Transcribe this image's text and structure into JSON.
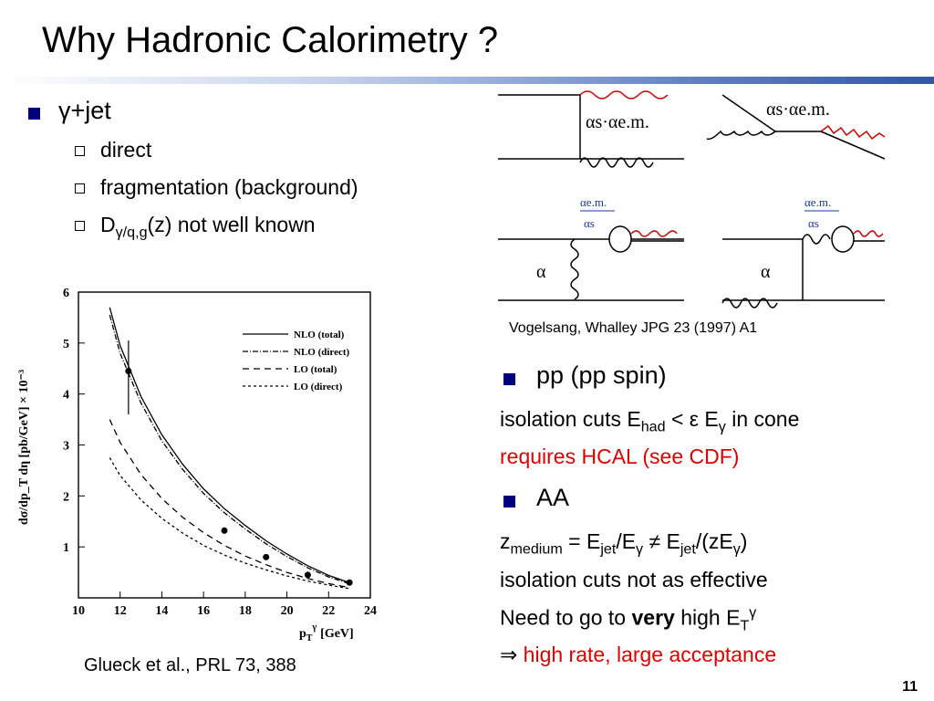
{
  "slide": {
    "title": "Why Hadronic Calorimetry ?",
    "page_number": "11"
  },
  "left": {
    "bullet_main": "γ+jet",
    "subitems": [
      "direct",
      "fragmentation (background)"
    ],
    "sub3_prefix": "D",
    "sub3_subscript": "γ/q,g",
    "sub3_suffix": "(z) not well known",
    "plot_caption": "Glueck et al., PRL 73, 388"
  },
  "right": {
    "diagram_caption": "Vogelsang, Whalley JPG 23 (1997) A1",
    "pp_heading": "pp (pp spin)",
    "iso1": {
      "pre": "isolation cuts  E",
      "sub_had": "had",
      "mid": " < ε E",
      "sub_g": "γ",
      "post": " in cone"
    },
    "hcal": "requires HCAL (see CDF)",
    "aa_heading": "AA",
    "z": {
      "z": "z",
      "sub_medium": "medium",
      "eq": " = E",
      "sub_jet1": "jet",
      "slash": "/E",
      "sub_g1": "γ",
      "ne": " ≠ E",
      "sub_jet2": "jet",
      "slash2": "/(zE",
      "sub_g2": "γ",
      "close": ")"
    },
    "iso2": "isolation cuts not as effective",
    "need": {
      "pre": "Need to go to ",
      "bold": "very",
      "post": " high E",
      "sub_t": "T",
      "sup_g": "γ"
    },
    "arrow": "⇒",
    "highrate": " high rate, large acceptance"
  },
  "diagrams": {
    "labels": {
      "as_aem": "αs·αe.m.",
      "aem": "αe.m.",
      "as": "αs",
      "as2": "α"
    }
  },
  "colors": {
    "bullet": "#000080",
    "red": "#e00000",
    "wavy": "#cc0000",
    "coupling_blue": "#1a3a9c"
  },
  "chart_data": {
    "type": "line",
    "xlabel": "p",
    "xlabel_sub": "T",
    "xlabel_sup": "γ",
    "xlabel_unit": "[GeV]",
    "ylabel": "dσ/dp_T dη  [pb/GeV] × 10⁻³",
    "xlim": [
      10,
      24
    ],
    "ylim": [
      0,
      6
    ],
    "x_ticks": [
      10,
      12,
      14,
      16,
      18,
      20,
      22,
      24
    ],
    "y_ticks": [
      1,
      2,
      3,
      4,
      5,
      6
    ],
    "legend": [
      "NLO (total)",
      "NLO (direct)",
      "LO (total)",
      "LO (direct)"
    ],
    "legend_position": "top-right",
    "series": [
      {
        "name": "NLO (total)",
        "x": [
          11.5,
          12,
          13,
          14,
          15,
          16,
          17,
          18,
          19,
          20,
          21,
          22,
          23
        ],
        "values": [
          5.7,
          4.95,
          3.95,
          3.2,
          2.62,
          2.14,
          1.75,
          1.42,
          1.12,
          0.86,
          0.63,
          0.44,
          0.3
        ]
      },
      {
        "name": "NLO (direct)",
        "x": [
          11.5,
          12,
          13,
          14,
          15,
          16,
          17,
          18,
          19,
          20,
          21,
          22,
          23
        ],
        "values": [
          5.55,
          4.8,
          3.82,
          3.08,
          2.52,
          2.05,
          1.67,
          1.35,
          1.06,
          0.81,
          0.59,
          0.41,
          0.28
        ]
      },
      {
        "name": "LO (total)",
        "x": [
          11.5,
          12,
          13,
          14,
          15,
          16,
          17,
          18,
          19,
          20,
          21,
          22,
          23
        ],
        "values": [
          3.5,
          3.05,
          2.42,
          1.95,
          1.58,
          1.28,
          1.03,
          0.82,
          0.65,
          0.5,
          0.38,
          0.28,
          0.2
        ]
      },
      {
        "name": "LO (direct)",
        "x": [
          11.5,
          12,
          13,
          14,
          15,
          16,
          17,
          18,
          19,
          20,
          21,
          22,
          23
        ],
        "values": [
          2.75,
          2.4,
          1.92,
          1.56,
          1.27,
          1.03,
          0.84,
          0.68,
          0.55,
          0.43,
          0.33,
          0.25,
          0.18
        ]
      }
    ],
    "data_points": {
      "x": [
        12.4,
        17,
        19,
        21,
        23
      ],
      "y": [
        4.45,
        1.32,
        0.8,
        0.45,
        0.3
      ],
      "err_low": [
        3.6,
        1.26,
        0.77,
        0.43,
        0.28
      ],
      "err_high": [
        5.05,
        1.38,
        0.83,
        0.47,
        0.32
      ]
    }
  }
}
